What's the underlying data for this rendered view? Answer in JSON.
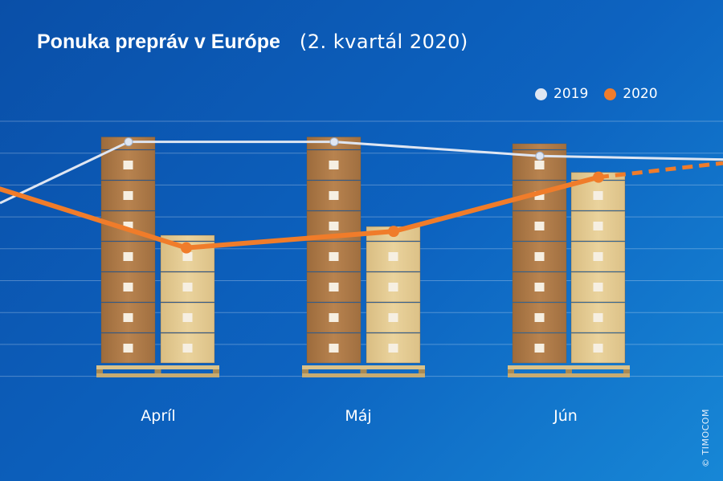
{
  "header": {
    "title": "Ponuka prepráv v Európe",
    "subtitle": "(2. kvartál  2020)"
  },
  "credit": "© TIMOCOM",
  "colors": {
    "background": "#0d63c0",
    "series_2019": "#dfe6f2",
    "series_2020": "#f07c2a",
    "box_dark": "#b07d4a",
    "box_light": "#e3cb94"
  },
  "chart_data": {
    "type": "line",
    "title": "Ponuka prepráv v Európe",
    "subtitle": "(2. kvartál  2020)",
    "categories": [
      "Apríl",
      "Máj",
      "Jún"
    ],
    "series": [
      {
        "name": "2019",
        "values": [
          100,
          100,
          94
        ],
        "forecast_after": null
      },
      {
        "name": "2020",
        "values": [
          55,
          62,
          85
        ],
        "forecast_after": "Jún"
      }
    ],
    "yaxis": {
      "labels_visible": false,
      "range": [
        0,
        120
      ]
    },
    "grid": true,
    "legend_position": "top-right",
    "decoration": "pallet box stacks behind each month; stack heights follow the 2019 and 2020 values"
  }
}
